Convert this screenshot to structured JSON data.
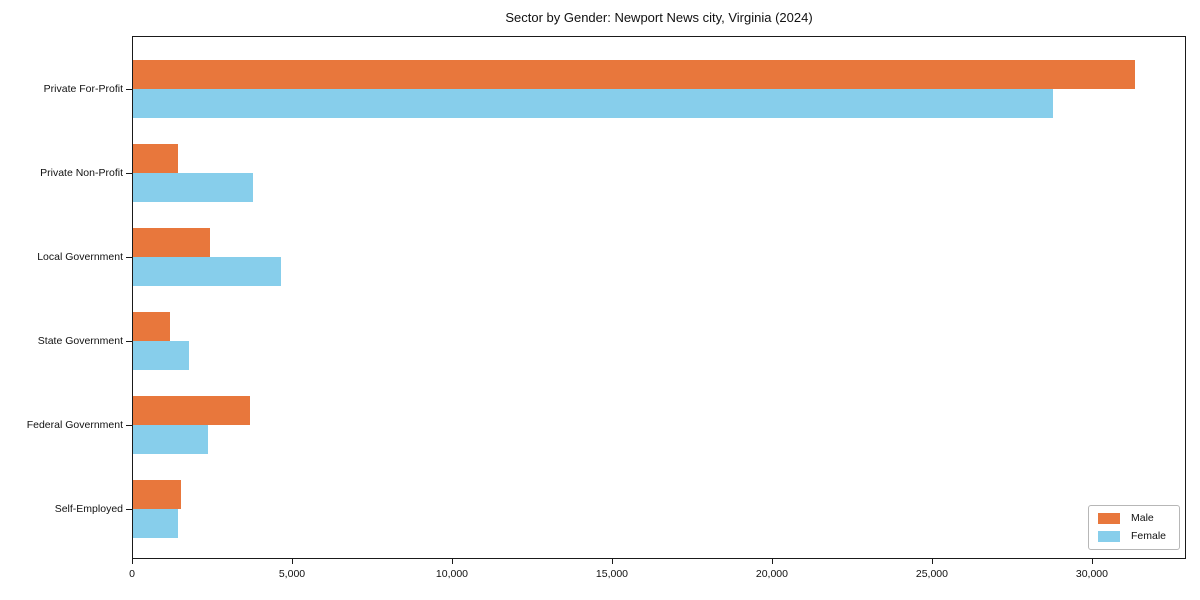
{
  "chart_data": {
    "type": "bar",
    "orientation": "horizontal",
    "title": "Sector by Gender: Newport News city, Virginia (2024)",
    "categories": [
      "Private For-Profit",
      "Private Non-Profit",
      "Local Government",
      "State Government",
      "Federal Government",
      "Self-Employed"
    ],
    "series": [
      {
        "name": "Male",
        "color": "#e8773c",
        "values": [
          31340,
          1440,
          2440,
          1190,
          3690,
          1530
        ]
      },
      {
        "name": "Female",
        "color": "#87ceeb",
        "values": [
          28780,
          3780,
          4660,
          1780,
          2380,
          1440
        ]
      }
    ],
    "xlabel": "",
    "ylabel": "",
    "xlim": [
      0,
      32940
    ],
    "x_ticks": {
      "values": [
        0,
        5000,
        10000,
        15000,
        20000,
        25000,
        30000
      ],
      "labels": [
        "0",
        "5,000",
        "10,000",
        "15,000",
        "20,000",
        "25,000",
        "30,000"
      ]
    },
    "grid": false,
    "legend": {
      "position": "lower right"
    },
    "colors": {
      "spine": "#1a1a1a",
      "background": "#ffffff"
    }
  }
}
